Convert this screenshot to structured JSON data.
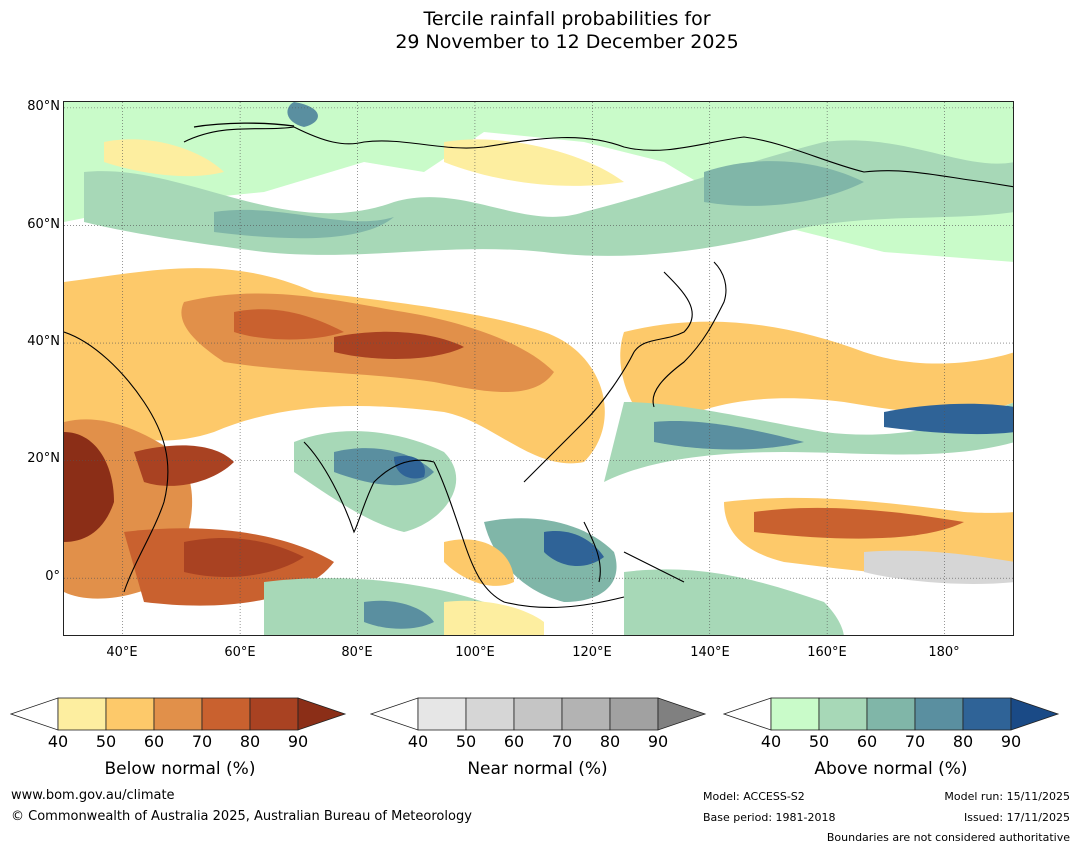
{
  "title": {
    "line1": "Tercile rainfall probabilities for",
    "line2": "29 November to 12 December 2025"
  },
  "map": {
    "lat_labels": [
      "80°N",
      "60°N",
      "40°N",
      "20°N",
      "0°"
    ],
    "lon_labels": [
      "40°E",
      "60°E",
      "80°E",
      "100°E",
      "120°E",
      "140°E",
      "160°E",
      "180°"
    ],
    "extent": {
      "lon": [
        30,
        192
      ],
      "lat": [
        -10,
        81
      ]
    }
  },
  "colorbars": {
    "below": {
      "title": "Below normal (%)",
      "ticks": [
        "40",
        "50",
        "60",
        "70",
        "80",
        "90"
      ],
      "colors": [
        "#fdeea0",
        "#fdc96a",
        "#e1904a",
        "#c9612f",
        "#a94222",
        "#8b2e17"
      ]
    },
    "near": {
      "title": "Near normal (%)",
      "ticks": [
        "40",
        "50",
        "60",
        "70",
        "80",
        "90"
      ],
      "colors": [
        "#e6e6e6",
        "#d6d6d6",
        "#c5c5c5",
        "#b3b3b3",
        "#a1a1a1",
        "#808080"
      ]
    },
    "above": {
      "title": "Above normal (%)",
      "ticks": [
        "40",
        "50",
        "60",
        "70",
        "80",
        "90"
      ],
      "colors": [
        "#c9fbc9",
        "#a7d8b7",
        "#80b6a8",
        "#5a8fa0",
        "#2f6397",
        "#1a4a86"
      ]
    }
  },
  "footer": {
    "url": "www.bom.gov.au/climate",
    "copyright": "© Commonwealth of Australia 2025, Australian Bureau of Meteorology",
    "model": "Model: ACCESS-S2",
    "base_period": "Base period: 1981-2018",
    "model_run": "Model run: 15/11/2025",
    "issued": "Issued: 17/11/2025",
    "disclaimer": "Boundaries are not considered authoritative"
  }
}
